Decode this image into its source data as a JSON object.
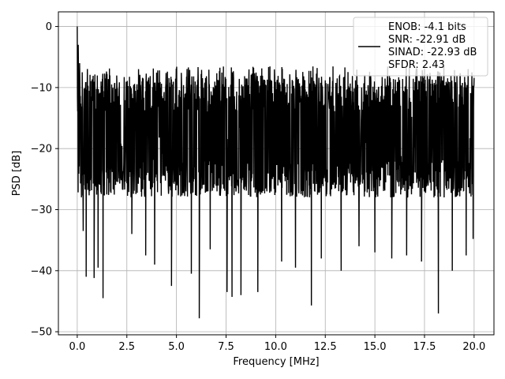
{
  "chart_data": {
    "type": "line",
    "title": "",
    "xlabel": "Frequency [MHz]",
    "ylabel": "PSD [dB]",
    "xlim": [
      -0.95,
      21.0
    ],
    "ylim": [
      -50.5,
      2.4
    ],
    "grid": true,
    "x_ticks": [
      0.0,
      2.5,
      5.0,
      7.5,
      10.0,
      12.5,
      15.0,
      17.5,
      20.0
    ],
    "x_tick_labels": [
      "0.0",
      "2.5",
      "5.0",
      "7.5",
      "10.0",
      "12.5",
      "15.0",
      "17.5",
      "20.0"
    ],
    "y_ticks": [
      0,
      -10,
      -20,
      -30,
      -40,
      -50
    ],
    "y_tick_labels": [
      "0",
      "−10",
      "−20",
      "−30",
      "−40",
      "−50"
    ],
    "series": [
      {
        "color": "#000000",
        "x_range": [
          0.0,
          20.0
        ],
        "noise_band": {
          "upper_typical": -8,
          "lower_typical": -28
        },
        "peaks": [
          {
            "x": 0.0,
            "y": 0.0
          },
          {
            "x": 0.05,
            "y": -3.0
          },
          {
            "x": 0.12,
            "y": -6.0
          },
          {
            "x": 0.25,
            "y": -7.5
          }
        ],
        "dips": [
          {
            "x": 0.3,
            "y": -33.5
          },
          {
            "x": 0.45,
            "y": -41.0
          },
          {
            "x": 0.85,
            "y": -41.2
          },
          {
            "x": 1.05,
            "y": -39.5
          },
          {
            "x": 1.3,
            "y": -44.5
          },
          {
            "x": 2.75,
            "y": -34.0
          },
          {
            "x": 3.45,
            "y": -37.5
          },
          {
            "x": 3.9,
            "y": -39.0
          },
          {
            "x": 4.75,
            "y": -42.5
          },
          {
            "x": 5.75,
            "y": -40.5
          },
          {
            "x": 6.15,
            "y": -47.8
          },
          {
            "x": 6.7,
            "y": -36.5
          },
          {
            "x": 7.55,
            "y": -43.5
          },
          {
            "x": 7.8,
            "y": -44.3
          },
          {
            "x": 8.25,
            "y": -44.0
          },
          {
            "x": 9.1,
            "y": -43.5
          },
          {
            "x": 10.3,
            "y": -38.5
          },
          {
            "x": 11.0,
            "y": -39.5
          },
          {
            "x": 11.8,
            "y": -45.7
          },
          {
            "x": 12.3,
            "y": -38.0
          },
          {
            "x": 13.3,
            "y": -40.0
          },
          {
            "x": 14.2,
            "y": -36.0
          },
          {
            "x": 15.0,
            "y": -37.0
          },
          {
            "x": 15.85,
            "y": -38.0
          },
          {
            "x": 16.6,
            "y": -37.5
          },
          {
            "x": 17.35,
            "y": -38.5
          },
          {
            "x": 18.2,
            "y": -47.0
          },
          {
            "x": 18.9,
            "y": -40.0
          },
          {
            "x": 19.6,
            "y": -37.5
          },
          {
            "x": 19.95,
            "y": -34.8
          }
        ]
      }
    ],
    "legend": {
      "placement": "top-right",
      "entries": [
        "ENOB: -4.1 bits",
        "SNR: -22.91 dB",
        "SINAD: -22.93 dB",
        "SFDR: 2.43"
      ]
    }
  }
}
